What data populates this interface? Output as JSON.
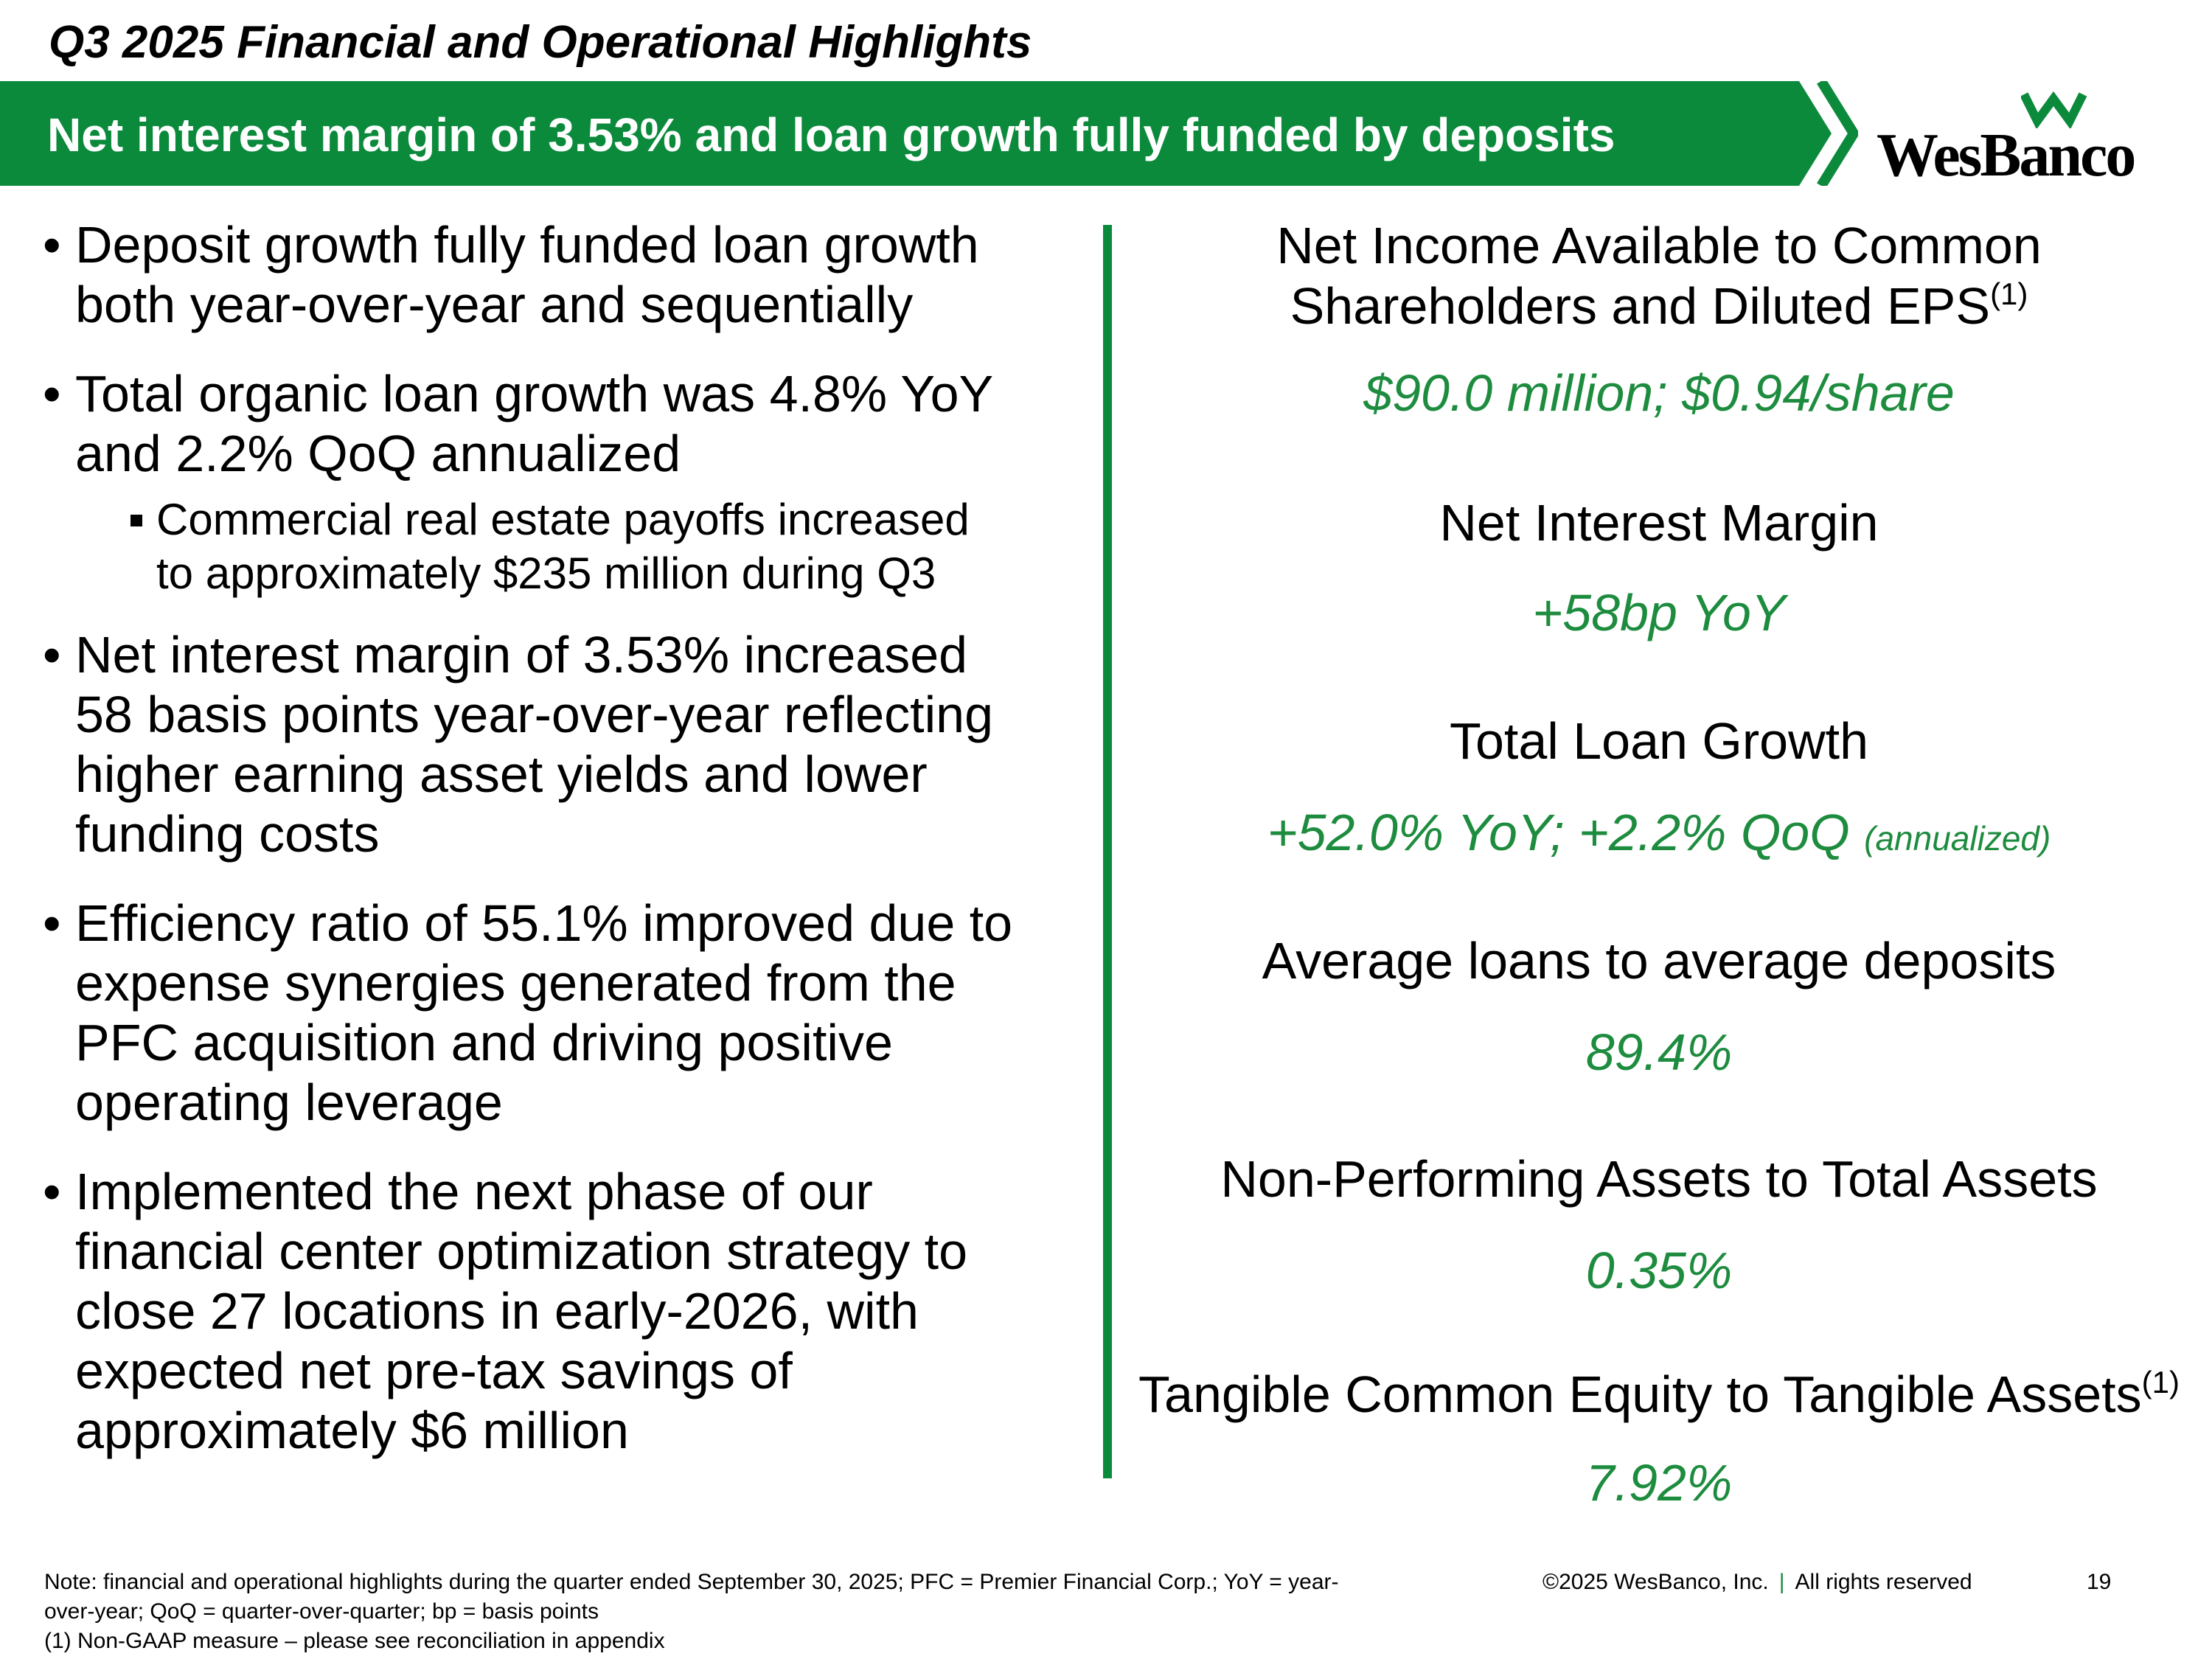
{
  "header": {
    "title": "Q3 2025 Financial and Operational Highlights",
    "banner": "Net interest margin of 3.53% and loan growth fully funded by deposits"
  },
  "logo": {
    "text": "WesBanco",
    "icon": "wesbanco-w-mark-icon"
  },
  "colors": {
    "brand_green": "#0c8a3c",
    "value_green": "#1e8c3f"
  },
  "bullets": [
    {
      "lines": [
        "Deposit growth fully funded loan growth",
        "both year-over-year and sequentially"
      ]
    },
    {
      "lines": [
        "Total organic loan growth was 4.8% YoY",
        "and 2.2% QoQ annualized"
      ],
      "sub": [
        "Commercial real estate payoffs increased",
        "to approximately $235 million during Q3"
      ]
    },
    {
      "lines": [
        "Net interest margin of 3.53% increased",
        "58 basis points year-over-year reflecting",
        "higher earning asset yields and lower",
        "funding costs"
      ]
    },
    {
      "lines": [
        "Efficiency ratio of 55.1% improved due to",
        "expense synergies generated from the",
        "PFC acquisition and driving positive",
        "operating leverage"
      ]
    },
    {
      "lines": [
        "Implemented the next phase of our",
        "financial center optimization strategy to",
        "close 27 locations in early-2026, with",
        "expected net pre-tax savings of",
        "approximately $6 million"
      ]
    }
  ],
  "kpis": [
    {
      "label": [
        "Net Income Available to Common",
        "Shareholders and Diluted EPS"
      ],
      "label_sup": "(1)",
      "value": "$90.0 million; $0.94/share"
    },
    {
      "label": [
        "Net Interest Margin"
      ],
      "value": "+58bp YoY"
    },
    {
      "label": [
        "Total Loan Growth"
      ],
      "value": "+52.0% YoY; +2.2% QoQ",
      "value_note": "(annualized)"
    },
    {
      "label": [
        "Average loans to average deposits"
      ],
      "value": "89.4%"
    },
    {
      "label": [
        "Non-Performing Assets to Total Assets"
      ],
      "value": "0.35%"
    },
    {
      "label": [
        "Tangible Common Equity to Tangible Assets"
      ],
      "label_sup": "(1)",
      "value": "7.92%"
    }
  ],
  "footer": {
    "note_lines": [
      "Note: financial and operational highlights during the quarter ended September 30, 2025; PFC = Premier Financial Corp.; YoY = year-",
      "over-year; QoQ = quarter-over-quarter; bp = basis points",
      "(1) Non-GAAP measure – please see reconciliation in appendix"
    ],
    "copyright": "©2025 WesBanco, Inc.",
    "separator": "|",
    "rights": "All rights reserved",
    "page_number": "19"
  }
}
